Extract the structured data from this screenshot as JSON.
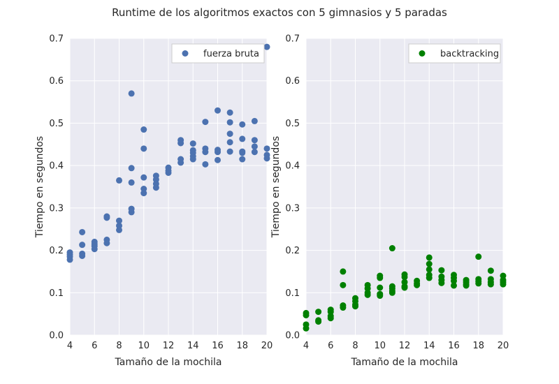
{
  "figure": {
    "title": "Runtime de los algoritmos exactos con 5 gimnasios y 5 paradas"
  },
  "chart_data": [
    {
      "type": "scatter",
      "xlabel": "Tamaño de la mochila",
      "ylabel": "Tiempo en segundos",
      "xlim": [
        4,
        20
      ],
      "ylim": [
        0,
        0.7
      ],
      "xticks": [
        "4",
        "6",
        "8",
        "10",
        "12",
        "14",
        "16",
        "18",
        "20"
      ],
      "yticks": [
        "0.0",
        "0.1",
        "0.2",
        "0.3",
        "0.4",
        "0.5",
        "0.6",
        "0.7"
      ],
      "grid": true,
      "legend_position": "top-right",
      "series": [
        {
          "name": "fuerza bruta",
          "color": "#4c72b0",
          "points": [
            [
              4,
              0.195
            ],
            [
              4,
              0.19
            ],
            [
              4,
              0.185
            ],
            [
              4,
              0.178
            ],
            [
              5,
              0.243
            ],
            [
              5,
              0.213
            ],
            [
              5,
              0.192
            ],
            [
              5,
              0.187
            ],
            [
              6,
              0.22
            ],
            [
              6,
              0.215
            ],
            [
              6,
              0.21
            ],
            [
              6,
              0.203
            ],
            [
              7,
              0.28
            ],
            [
              7,
              0.277
            ],
            [
              7,
              0.225
            ],
            [
              7,
              0.217
            ],
            [
              8,
              0.365
            ],
            [
              8,
              0.27
            ],
            [
              8,
              0.258
            ],
            [
              8,
              0.248
            ],
            [
              9,
              0.57
            ],
            [
              9,
              0.394
            ],
            [
              9,
              0.36
            ],
            [
              9,
              0.298
            ],
            [
              9,
              0.29
            ],
            [
              10,
              0.485
            ],
            [
              10,
              0.44
            ],
            [
              10,
              0.372
            ],
            [
              10,
              0.345
            ],
            [
              10,
              0.335
            ],
            [
              11,
              0.376
            ],
            [
              11,
              0.367
            ],
            [
              11,
              0.357
            ],
            [
              11,
              0.348
            ],
            [
              12,
              0.395
            ],
            [
              12,
              0.388
            ],
            [
              12,
              0.383
            ],
            [
              13,
              0.46
            ],
            [
              13,
              0.453
            ],
            [
              13,
              0.415
            ],
            [
              13,
              0.407
            ],
            [
              14,
              0.452
            ],
            [
              14,
              0.436
            ],
            [
              14,
              0.43
            ],
            [
              14,
              0.422
            ],
            [
              14,
              0.415
            ],
            [
              15,
              0.503
            ],
            [
              15,
              0.44
            ],
            [
              15,
              0.432
            ],
            [
              15,
              0.403
            ],
            [
              16,
              0.53
            ],
            [
              16,
              0.437
            ],
            [
              16,
              0.432
            ],
            [
              16,
              0.413
            ],
            [
              17,
              0.525
            ],
            [
              17,
              0.502
            ],
            [
              17,
              0.475
            ],
            [
              17,
              0.455
            ],
            [
              17,
              0.433
            ],
            [
              18,
              0.497
            ],
            [
              18,
              0.463
            ],
            [
              18,
              0.433
            ],
            [
              18,
              0.43
            ],
            [
              18,
              0.415
            ],
            [
              19,
              0.505
            ],
            [
              19,
              0.46
            ],
            [
              19,
              0.445
            ],
            [
              19,
              0.432
            ],
            [
              20,
              0.68
            ],
            [
              20,
              0.44
            ],
            [
              20,
              0.425
            ],
            [
              20,
              0.417
            ]
          ]
        }
      ]
    },
    {
      "type": "scatter",
      "xlabel": "Tamaño de la mochila",
      "ylabel": "Tiempo en segundos",
      "xlim": [
        4,
        20
      ],
      "ylim": [
        0,
        0.7
      ],
      "xticks": [
        "4",
        "6",
        "8",
        "10",
        "12",
        "14",
        "16",
        "18",
        "20"
      ],
      "yticks": [
        "0.0",
        "0.1",
        "0.2",
        "0.3",
        "0.4",
        "0.5",
        "0.6",
        "0.7"
      ],
      "grid": true,
      "legend_position": "top-right",
      "series": [
        {
          "name": "backtracking",
          "color": "#008000",
          "points": [
            [
              4,
              0.052
            ],
            [
              4,
              0.047
            ],
            [
              4,
              0.025
            ],
            [
              4,
              0.016
            ],
            [
              5,
              0.055
            ],
            [
              5,
              0.035
            ],
            [
              5,
              0.032
            ],
            [
              6,
              0.06
            ],
            [
              6,
              0.055
            ],
            [
              6,
              0.045
            ],
            [
              6,
              0.04
            ],
            [
              7,
              0.15
            ],
            [
              7,
              0.118
            ],
            [
              7,
              0.07
            ],
            [
              7,
              0.065
            ],
            [
              8,
              0.087
            ],
            [
              8,
              0.08
            ],
            [
              8,
              0.072
            ],
            [
              8,
              0.068
            ],
            [
              9,
              0.118
            ],
            [
              9,
              0.11
            ],
            [
              9,
              0.1
            ],
            [
              9,
              0.095
            ],
            [
              10,
              0.14
            ],
            [
              10,
              0.135
            ],
            [
              10,
              0.112
            ],
            [
              10,
              0.097
            ],
            [
              10,
              0.093
            ],
            [
              11,
              0.205
            ],
            [
              11,
              0.115
            ],
            [
              11,
              0.11
            ],
            [
              11,
              0.104
            ],
            [
              11,
              0.1
            ],
            [
              12,
              0.143
            ],
            [
              12,
              0.137
            ],
            [
              12,
              0.125
            ],
            [
              12,
              0.115
            ],
            [
              12,
              0.112
            ],
            [
              13,
              0.128
            ],
            [
              13,
              0.122
            ],
            [
              13,
              0.118
            ],
            [
              14,
              0.183
            ],
            [
              14,
              0.168
            ],
            [
              14,
              0.155
            ],
            [
              14,
              0.142
            ],
            [
              14,
              0.135
            ],
            [
              15,
              0.153
            ],
            [
              15,
              0.138
            ],
            [
              15,
              0.13
            ],
            [
              15,
              0.123
            ],
            [
              16,
              0.142
            ],
            [
              16,
              0.135
            ],
            [
              16,
              0.128
            ],
            [
              16,
              0.117
            ],
            [
              17,
              0.13
            ],
            [
              17,
              0.125
            ],
            [
              17,
              0.12
            ],
            [
              17,
              0.117
            ],
            [
              18,
              0.185
            ],
            [
              18,
              0.132
            ],
            [
              18,
              0.127
            ],
            [
              18,
              0.122
            ],
            [
              19,
              0.152
            ],
            [
              19,
              0.132
            ],
            [
              19,
              0.125
            ],
            [
              19,
              0.12
            ],
            [
              20,
              0.14
            ],
            [
              20,
              0.13
            ],
            [
              20,
              0.125
            ],
            [
              20,
              0.12
            ]
          ]
        }
      ]
    }
  ]
}
